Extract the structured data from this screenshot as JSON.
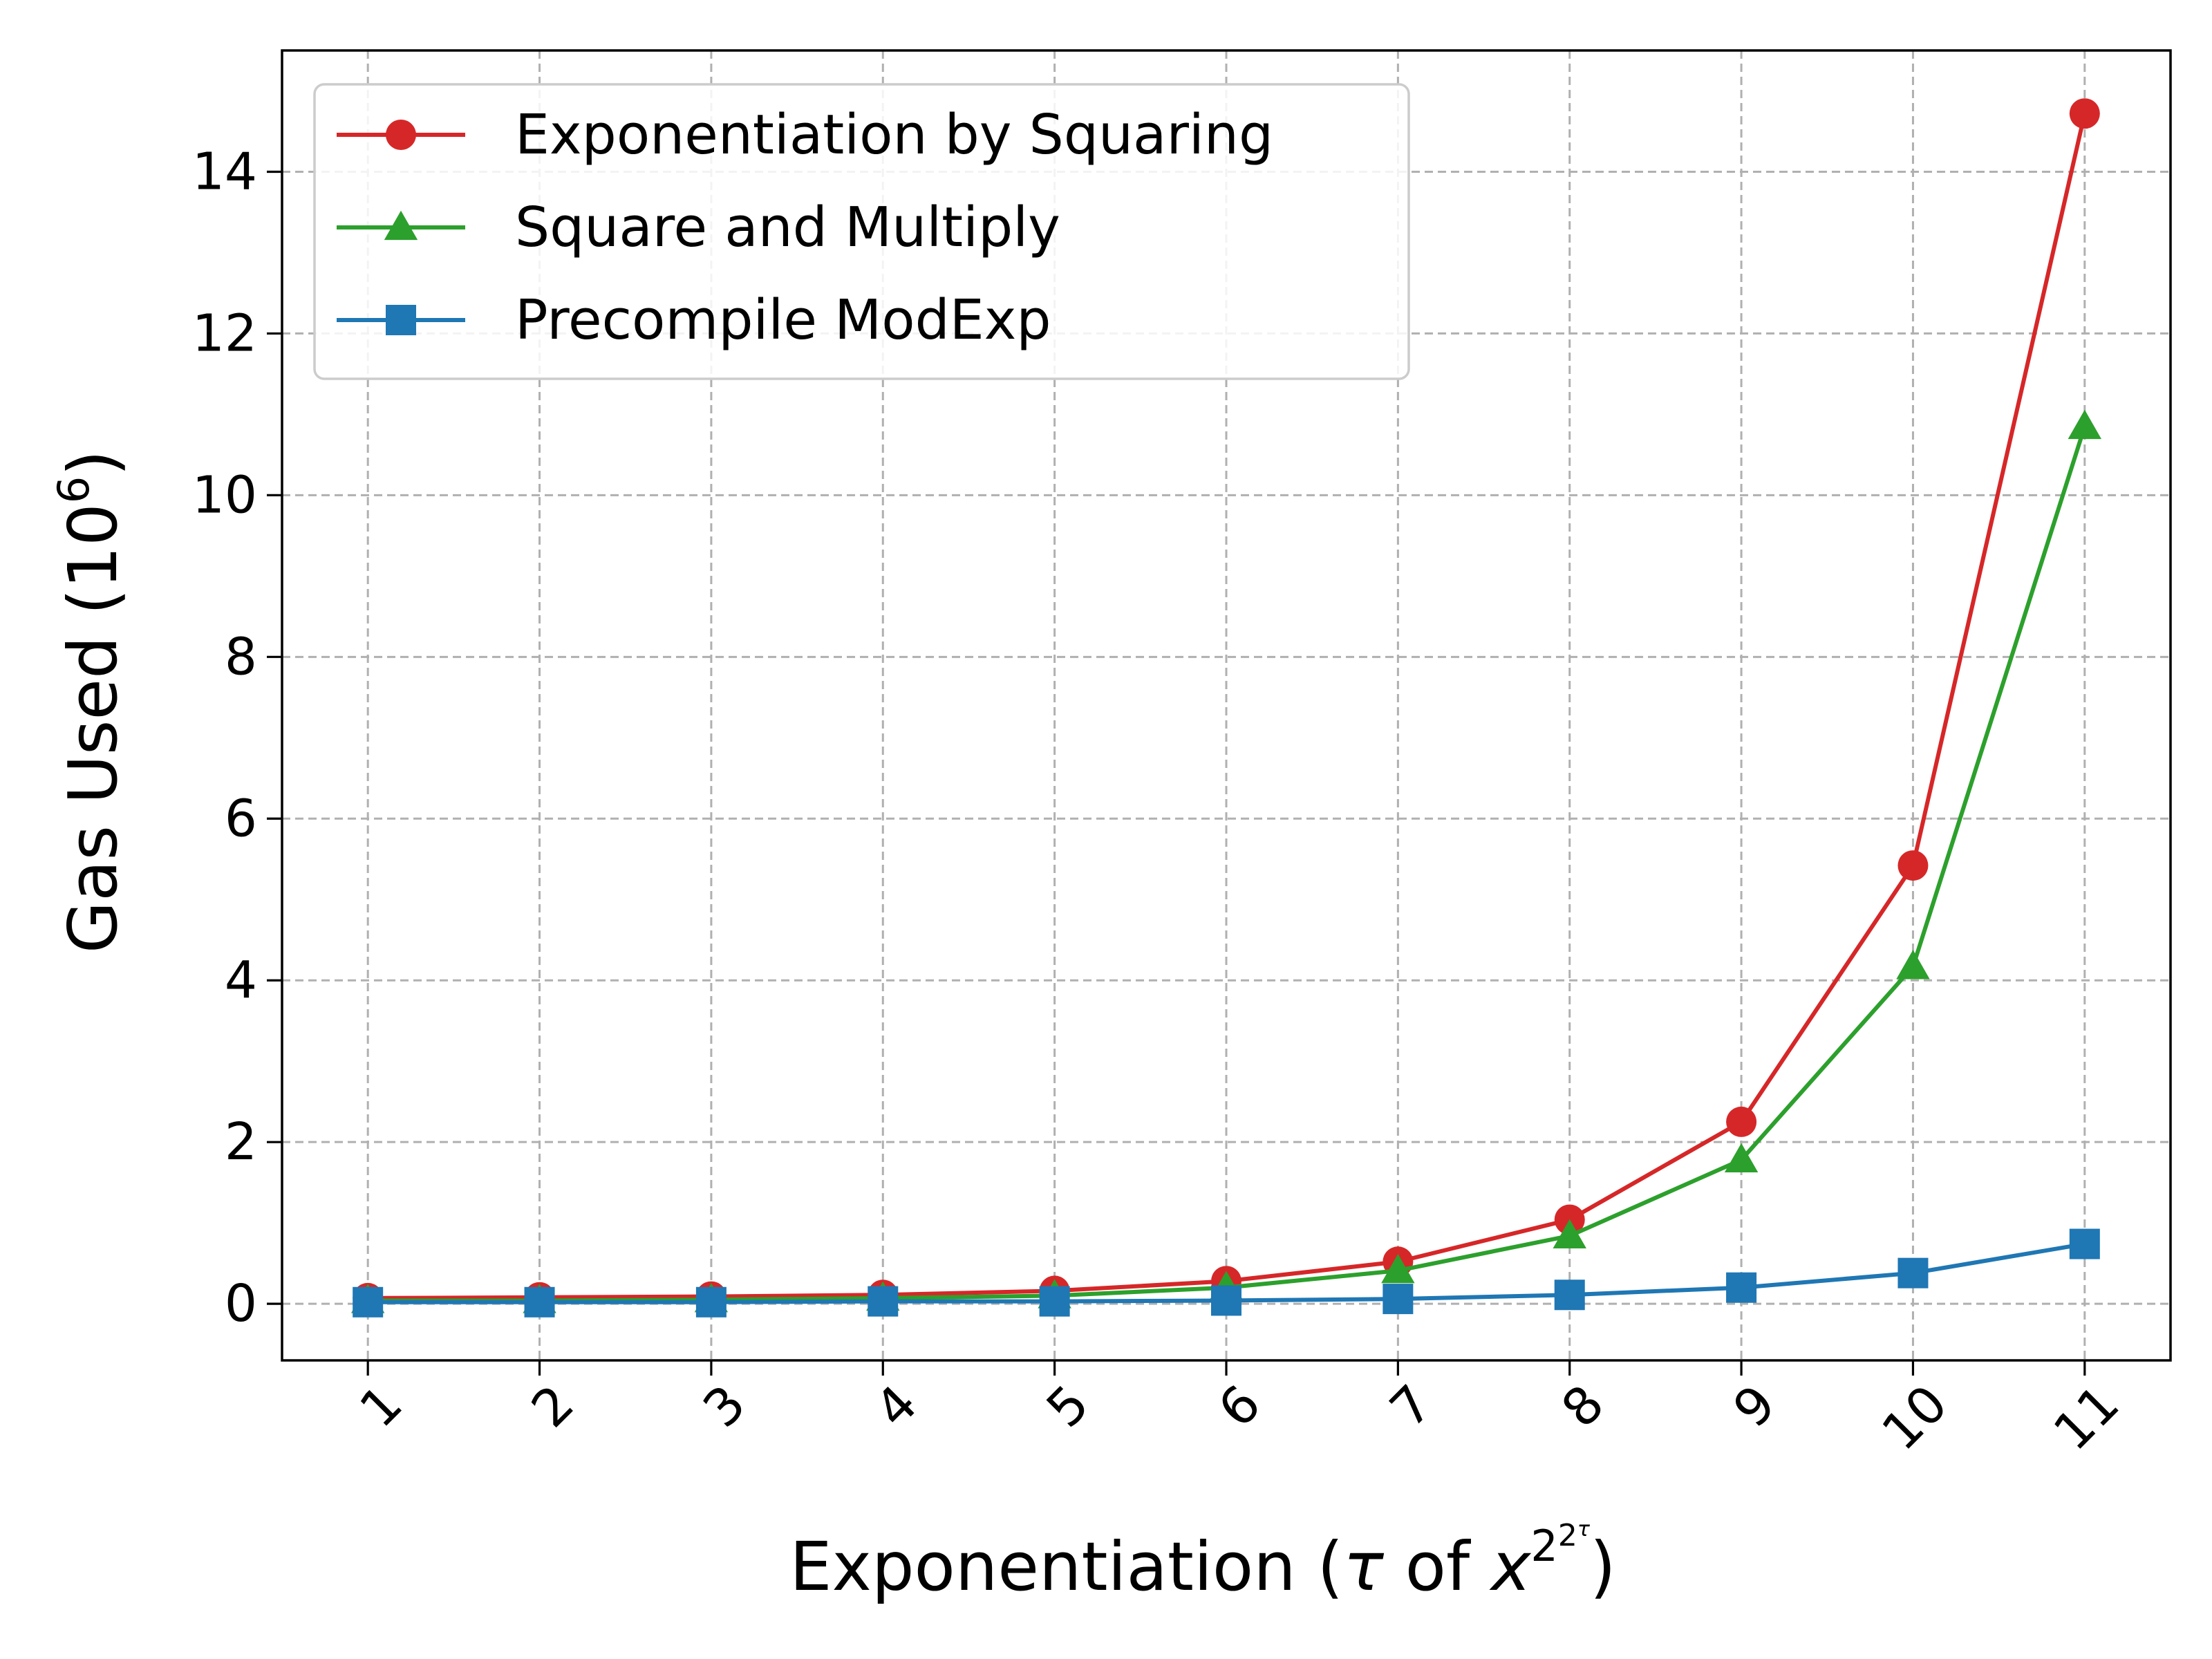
{
  "chart_data": {
    "type": "line",
    "x": [
      1,
      2,
      3,
      4,
      5,
      6,
      7,
      8,
      9,
      10,
      11
    ],
    "x_tick_labels": [
      "1",
      "2",
      "3",
      "4",
      "5",
      "6",
      "7",
      "8",
      "9",
      "10",
      "11"
    ],
    "y_ticks": [
      0,
      2,
      4,
      6,
      8,
      10,
      12,
      14
    ],
    "y_tick_labels": [
      "0",
      "2",
      "4",
      "6",
      "8",
      "10",
      "12",
      "14"
    ],
    "xlim": [
      0.5,
      11.5
    ],
    "ylim": [
      -0.7,
      15.5
    ],
    "grid": true,
    "legend_position": "top-left",
    "xlabel": {
      "prefix": "Exponentiation (",
      "tau": "τ",
      "of": " of ",
      "x": "x",
      "base": "2",
      "inner_base": "2",
      "inner_exp": "τ",
      "suffix": ")"
    },
    "ylabel": {
      "prefix": "Gas Used (10",
      "exp": "6",
      "suffix": ")"
    },
    "series": [
      {
        "name": "Exponentiation by Squaring",
        "color": "#d62728",
        "marker": "circle",
        "values": [
          0.07,
          0.08,
          0.09,
          0.11,
          0.16,
          0.28,
          0.52,
          1.04,
          2.25,
          5.42,
          14.72
        ]
      },
      {
        "name": "Square and Multiply",
        "color": "#2ca02c",
        "marker": "triangle",
        "values": [
          0.04,
          0.04,
          0.05,
          0.07,
          0.1,
          0.2,
          0.41,
          0.84,
          1.78,
          4.17,
          10.85
        ]
      },
      {
        "name": "Precompile ModExp",
        "color": "#1f77b4",
        "marker": "square",
        "values": [
          0.02,
          0.02,
          0.02,
          0.03,
          0.03,
          0.04,
          0.06,
          0.11,
          0.2,
          0.38,
          0.74
        ]
      }
    ]
  }
}
